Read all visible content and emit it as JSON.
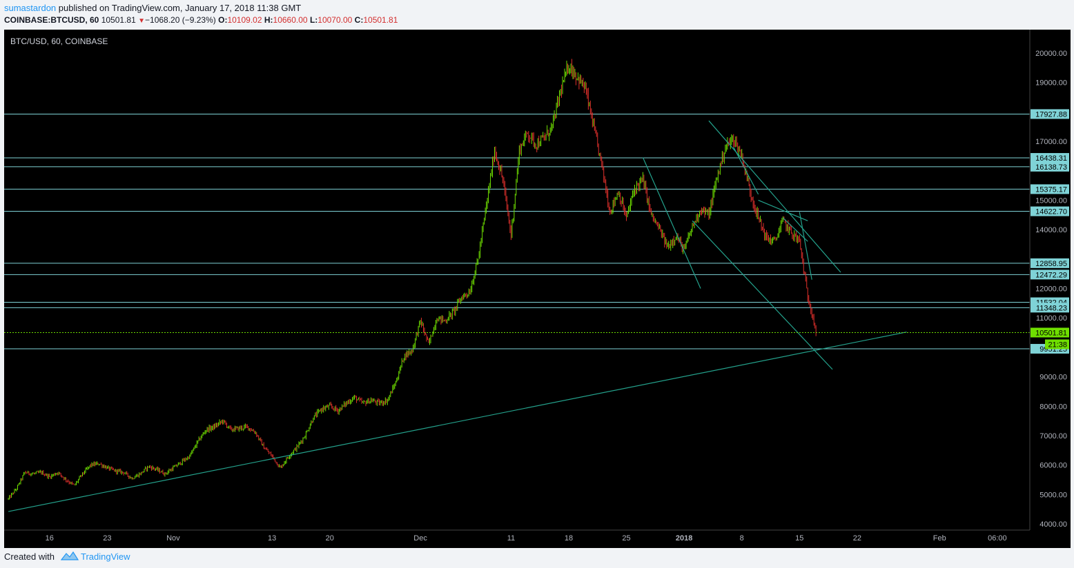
{
  "header": {
    "author": "sumastardon",
    "published_text": "published on TradingView.com, January 17, 2018 11:38 GMT",
    "symbol": "COINBASE:BTCUSD, 60",
    "last": "10501.81",
    "change": "−1068.20 (−9.23%)",
    "o_label": "O:",
    "o_value": "10109.02",
    "h_label": "H:",
    "h_value": "10660.00",
    "l_label": "L:",
    "l_value": "10070.00",
    "c_label": "C:",
    "c_value": "10501.81"
  },
  "footer": {
    "created_with": "Created with",
    "brand": "TradingView"
  },
  "chart_data": {
    "type": "line",
    "subtype": "candlestick",
    "title": "BTC/USD, 60, COINBASE",
    "y_ticks": [
      4000,
      5000,
      6000,
      7000,
      8000,
      9000,
      11000,
      12000,
      14000,
      15000,
      17000,
      19000,
      20000
    ],
    "y_tick_labels": [
      "4000.00",
      "5000.00",
      "6000.00",
      "7000.00",
      "8000.00",
      "9000.00",
      "11000.00",
      "12000.00",
      "14000.00",
      "15000.00",
      "17000.00",
      "19000.00",
      "20000.00"
    ],
    "ylim": [
      3850,
      20350
    ],
    "x_ticks": [
      {
        "label": "16",
        "day": -46,
        "bold": false
      },
      {
        "label": "23",
        "day": -39,
        "bold": false
      },
      {
        "label": "Nov",
        "day": -31,
        "bold": false
      },
      {
        "label": "13",
        "day": -19,
        "bold": false
      },
      {
        "label": "20",
        "day": -12,
        "bold": false
      },
      {
        "label": "Dec",
        "day": -1,
        "bold": false
      },
      {
        "label": "11",
        "day": 10,
        "bold": false
      },
      {
        "label": "18",
        "day": 17,
        "bold": false
      },
      {
        "label": "25",
        "day": 24,
        "bold": false
      },
      {
        "label": "2018",
        "day": 31,
        "bold": true
      },
      {
        "label": "8",
        "day": 38,
        "bold": false
      },
      {
        "label": "15",
        "day": 45,
        "bold": false
      },
      {
        "label": "22",
        "day": 52,
        "bold": false
      },
      {
        "label": "Feb",
        "day": 62,
        "bold": false
      },
      {
        "label": "06:00",
        "day": 69,
        "bold": false
      }
    ],
    "x_axis_note": "day = days relative to 2017-12-01",
    "price_series": {
      "name": "COINBASE:BTCUSD",
      "points": [
        [
          -51,
          4850
        ],
        [
          -50,
          5200
        ],
        [
          -49,
          5750
        ],
        [
          -48,
          5700
        ],
        [
          -47,
          5750
        ],
        [
          -46,
          5600
        ],
        [
          -45,
          5750
        ],
        [
          -44,
          5500
        ],
        [
          -43,
          5300
        ],
        [
          -42,
          5700
        ],
        [
          -41,
          6000
        ],
        [
          -40,
          6050
        ],
        [
          -39,
          5900
        ],
        [
          -38,
          5800
        ],
        [
          -37,
          5750
        ],
        [
          -36,
          5550
        ],
        [
          -35,
          5700
        ],
        [
          -34,
          5950
        ],
        [
          -33,
          5850
        ],
        [
          -32,
          5700
        ],
        [
          -31,
          5900
        ],
        [
          -30,
          6100
        ],
        [
          -29,
          6300
        ],
        [
          -28,
          6800
        ],
        [
          -27,
          7200
        ],
        [
          -26,
          7300
        ],
        [
          -25,
          7500
        ],
        [
          -24,
          7200
        ],
        [
          -23,
          7250
        ],
        [
          -22,
          7300
        ],
        [
          -21,
          7100
        ],
        [
          -20,
          6600
        ],
        [
          -19,
          6300
        ],
        [
          -18,
          5900
        ],
        [
          -17,
          6300
        ],
        [
          -16,
          6600
        ],
        [
          -15,
          7000
        ],
        [
          -14,
          7600
        ],
        [
          -13,
          7900
        ],
        [
          -12,
          8000
        ],
        [
          -11,
          7850
        ],
        [
          -10,
          8100
        ],
        [
          -9,
          8300
        ],
        [
          -8,
          8100
        ],
        [
          -7,
          8200
        ],
        [
          -6,
          8100
        ],
        [
          -5,
          8200
        ],
        [
          -4,
          8800
        ],
        [
          -3,
          9700
        ],
        [
          -2,
          9900
        ],
        [
          -1,
          10900
        ],
        [
          0,
          10100
        ],
        [
          1,
          11000
        ],
        [
          2,
          10900
        ],
        [
          3,
          11200
        ],
        [
          4,
          11700
        ],
        [
          5,
          11900
        ],
        [
          6,
          13000
        ],
        [
          7,
          14800
        ],
        [
          8,
          16700
        ],
        [
          9,
          15700
        ],
        [
          10,
          13800
        ],
        [
          11,
          16700
        ],
        [
          12,
          17300
        ],
        [
          13,
          16900
        ],
        [
          14,
          17100
        ],
        [
          15,
          17500
        ],
        [
          16,
          18700
        ],
        [
          17,
          19600
        ],
        [
          18,
          19200
        ],
        [
          19,
          18800
        ],
        [
          20,
          17500
        ],
        [
          21,
          16200
        ],
        [
          22,
          14600
        ],
        [
          23,
          15300
        ],
        [
          24,
          14400
        ],
        [
          25,
          15400
        ],
        [
          26,
          15700
        ],
        [
          27,
          14500
        ],
        [
          28,
          14000
        ],
        [
          29,
          13400
        ],
        [
          30,
          13800
        ],
        [
          31,
          13300
        ],
        [
          32,
          14100
        ],
        [
          33,
          14700
        ],
        [
          34,
          14500
        ],
        [
          35,
          15800
        ],
        [
          36,
          16800
        ],
        [
          37,
          17100
        ],
        [
          38,
          16500
        ],
        [
          39,
          15300
        ],
        [
          40,
          14400
        ],
        [
          41,
          13700
        ],
        [
          42,
          13600
        ],
        [
          43,
          14300
        ],
        [
          44,
          13900
        ],
        [
          45,
          13600
        ],
        [
          46,
          11700
        ],
        [
          46.6,
          11100
        ],
        [
          47,
          10501
        ]
      ]
    },
    "horizontal_levels": [
      {
        "value": 17927.88,
        "label": "17927.88"
      },
      {
        "value": 16438.31,
        "label": "16438.31"
      },
      {
        "value": 16138.73,
        "label": "16138.73"
      },
      {
        "value": 15375.17,
        "label": "15375.17"
      },
      {
        "value": 14622.7,
        "label": "14622.70"
      },
      {
        "value": 12858.95,
        "label": "12858.95"
      },
      {
        "value": 12472.29,
        "label": "12472.29"
      },
      {
        "value": 11532.04,
        "label": "11532.04"
      },
      {
        "value": 11348.23,
        "label": "11348.23"
      },
      {
        "value": 9951.25,
        "label": "9951.25"
      }
    ],
    "trend_lines": [
      {
        "from": [
          -51,
          4420
        ],
        "to": [
          58,
          10520
        ]
      },
      {
        "from": [
          26,
          16450
        ],
        "to": [
          33,
          12000
        ]
      },
      {
        "from": [
          32,
          14300
        ],
        "to": [
          49,
          9250
        ]
      },
      {
        "from": [
          34,
          17700
        ],
        "to": [
          50,
          12550
        ]
      },
      {
        "from": [
          37,
          16800
        ],
        "to": [
          40,
          15200
        ]
      },
      {
        "from": [
          40,
          15000
        ],
        "to": [
          46,
          14300
        ]
      },
      {
        "from": [
          43,
          14400
        ],
        "to": [
          46,
          13600
        ]
      },
      {
        "from": [
          45,
          14600
        ],
        "to": [
          46.5,
          12300
        ]
      }
    ],
    "current_price": {
      "value": 10501.81,
      "label": "10501.81",
      "countdown": "21:38"
    },
    "colors": {
      "background": "#000000",
      "up": "#6fdf00",
      "down": "#e0302c",
      "levels": "#7fd3d7",
      "trend": "#24a38d",
      "current": "#6fdf00",
      "axis_text": "#b2b5be"
    },
    "grid": false
  }
}
